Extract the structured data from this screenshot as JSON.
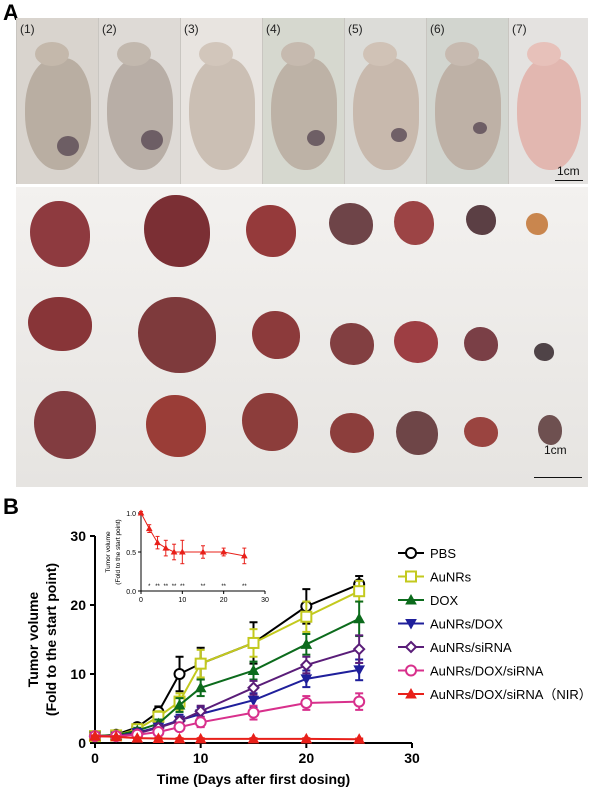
{
  "panelA": {
    "letter": "A",
    "mouse_labels": [
      "(1)",
      "(2)",
      "(3)",
      "(4)",
      "(5)",
      "(6)",
      "(7)"
    ],
    "scale_top": "1cm",
    "scale_bottom": "1cm"
  },
  "panelB": {
    "letter": "B"
  },
  "chart_data": [
    {
      "type": "line",
      "xlabel": "Time (Days after first dosing)",
      "ylabel": "Tumor volume",
      "ylabel2": "(Fold to the start point)",
      "xlim": [
        0,
        30
      ],
      "ylim": [
        0,
        30
      ],
      "xticks": [
        0,
        10,
        20,
        30
      ],
      "yticks": [
        0,
        10,
        20,
        30
      ],
      "grid": false,
      "legend_position": "right",
      "x": [
        0,
        2,
        4,
        6,
        8,
        10,
        15,
        20,
        25
      ],
      "series": [
        {
          "name": "PBS",
          "color": "#000000",
          "marker": "circle",
          "values": [
            1.0,
            1.2,
            2.3,
            4.5,
            10.0,
            11.5,
            14.5,
            19.8,
            23.0
          ],
          "errors": [
            0.2,
            0.3,
            0.5,
            0.8,
            2.5,
            2.3,
            3.0,
            2.5,
            1.2
          ]
        },
        {
          "name": "AuNRs",
          "color": "#c3c91e",
          "marker": "square",
          "values": [
            1.0,
            1.1,
            2.0,
            3.8,
            6.0,
            11.5,
            14.5,
            18.3,
            22.0
          ],
          "errors": [
            0.2,
            0.3,
            0.5,
            0.8,
            1.2,
            2.0,
            2.0,
            2.2,
            1.5
          ]
        },
        {
          "name": "DOX",
          "color": "#0c6b1c",
          "marker": "triangle-up",
          "values": [
            1.0,
            1.1,
            1.8,
            2.8,
            5.5,
            8.0,
            10.5,
            14.3,
            18.0
          ],
          "errors": [
            0.2,
            0.3,
            0.4,
            0.6,
            1.0,
            1.2,
            1.3,
            1.5,
            2.5
          ]
        },
        {
          "name": "AuNRs/DOX",
          "color": "#1f1f9b",
          "marker": "triangle-down",
          "values": [
            1.0,
            1.0,
            1.5,
            2.3,
            3.3,
            4.2,
            6.2,
            9.3,
            10.6
          ],
          "errors": [
            0.2,
            0.2,
            0.3,
            0.5,
            0.8,
            1.0,
            1.0,
            1.2,
            1.5
          ]
        },
        {
          "name": "AuNRs/siRNA",
          "color": "#5a1d79",
          "marker": "diamond",
          "values": [
            1.0,
            1.0,
            1.4,
            2.2,
            3.2,
            4.6,
            8.0,
            11.3,
            13.6
          ],
          "errors": [
            0.2,
            0.2,
            0.3,
            0.4,
            0.6,
            0.8,
            1.0,
            1.2,
            2.0
          ]
        },
        {
          "name": "AuNRs/DOX/siRNA",
          "color": "#d8308c",
          "marker": "circle",
          "values": [
            1.0,
            1.0,
            1.2,
            1.6,
            2.3,
            3.0,
            4.4,
            5.8,
            6.0
          ],
          "errors": [
            0.2,
            0.2,
            0.2,
            0.4,
            0.5,
            0.7,
            1.0,
            1.0,
            1.2
          ]
        },
        {
          "name": "AuNRs/DOX/siRNA（NIR）",
          "color": "#e8201a",
          "marker": "triangle-up",
          "values": [
            1.0,
            0.9,
            0.7,
            0.65,
            0.6,
            0.6,
            0.6,
            0.6,
            0.55
          ],
          "errors": [
            0.1,
            0.1,
            0.1,
            0.1,
            0.1,
            0.1,
            0.1,
            0.1,
            0.1
          ]
        }
      ]
    },
    {
      "type": "line",
      "title": "",
      "ylabel": "Tumor volume",
      "ylabel2": "(Fold to the start point)",
      "xlim": [
        0,
        30
      ],
      "ylim": [
        0.0,
        1.0
      ],
      "xticks": [
        0,
        10,
        20,
        30
      ],
      "yticks": [
        0.0,
        0.5,
        1.0
      ],
      "yticklabels": [
        "0.0",
        "0.5",
        "1.0"
      ],
      "grid": false,
      "series": [
        {
          "name": "",
          "color": "#e8201a",
          "marker": "triangle-up",
          "x": [
            0,
            2,
            4,
            6,
            8,
            10,
            15,
            20,
            25
          ],
          "values": [
            1.0,
            0.8,
            0.62,
            0.55,
            0.5,
            0.5,
            0.5,
            0.5,
            0.45
          ],
          "errors": [
            0.02,
            0.05,
            0.08,
            0.1,
            0.1,
            0.15,
            0.08,
            0.05,
            0.1
          ],
          "annotations": [
            "",
            "*",
            "**",
            "**",
            "**",
            "**",
            "**",
            "**",
            "**"
          ]
        }
      ]
    }
  ]
}
